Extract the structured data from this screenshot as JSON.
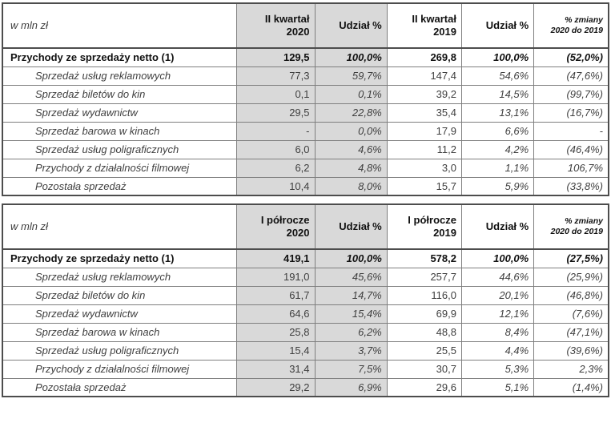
{
  "colors": {
    "shaded_column_bg": "#d9d9d9",
    "outer_border": "#4d4d4d",
    "inner_border": "#7f7f7f",
    "text_strong": "#111111",
    "text_regular": "#3f3f3f",
    "page_bg": "#ffffff"
  },
  "tables": [
    {
      "id": "quarterly",
      "unit_label": "w mln zł",
      "columns": [
        "II kwartał\n2020",
        "Udział %",
        "II kwartał\n2019",
        "Udział %",
        "% zmiany\n2020 do 2019"
      ],
      "rows": [
        {
          "label": "Przychody ze sprzedaży netto (1)",
          "total": true,
          "values": [
            "129,5",
            "100,0%",
            "269,8",
            "100,0%",
            "(52,0%)"
          ]
        },
        {
          "label": "Sprzedaż usług reklamowych",
          "total": false,
          "values": [
            "77,3",
            "59,7%",
            "147,4",
            "54,6%",
            "(47,6%)"
          ]
        },
        {
          "label": "Sprzedaż biletów do kin",
          "total": false,
          "values": [
            "0,1",
            "0,1%",
            "39,2",
            "14,5%",
            "(99,7%)"
          ]
        },
        {
          "label": "Sprzedaż wydawnictw",
          "total": false,
          "values": [
            "29,5",
            "22,8%",
            "35,4",
            "13,1%",
            "(16,7%)"
          ]
        },
        {
          "label": "Sprzedaż barowa w kinach",
          "total": false,
          "values": [
            "-",
            "0,0%",
            "17,9",
            "6,6%",
            "-"
          ]
        },
        {
          "label": "Sprzedaż usług poligraficznych",
          "total": false,
          "values": [
            "6,0",
            "4,6%",
            "11,2",
            "4,2%",
            "(46,4%)"
          ]
        },
        {
          "label": "Przychody z działalności filmowej",
          "total": false,
          "values": [
            "6,2",
            "4,8%",
            "3,0",
            "1,1%",
            "106,7%"
          ]
        },
        {
          "label": "Pozostała sprzedaż",
          "total": false,
          "values": [
            "10,4",
            "8,0%",
            "15,7",
            "5,9%",
            "(33,8%)"
          ]
        }
      ]
    },
    {
      "id": "half-year",
      "unit_label": "w mln zł",
      "columns": [
        "I półrocze\n2020",
        "Udział %",
        "I półrocze\n2019",
        "Udział %",
        "% zmiany\n2020 do 2019"
      ],
      "rows": [
        {
          "label": "Przychody ze sprzedaży netto (1)",
          "total": true,
          "values": [
            "419,1",
            "100,0%",
            "578,2",
            "100,0%",
            "(27,5%)"
          ]
        },
        {
          "label": "Sprzedaż usług reklamowych",
          "total": false,
          "values": [
            "191,0",
            "45,6%",
            "257,7",
            "44,6%",
            "(25,9%)"
          ]
        },
        {
          "label": "Sprzedaż biletów do kin",
          "total": false,
          "values": [
            "61,7",
            "14,7%",
            "116,0",
            "20,1%",
            "(46,8%)"
          ]
        },
        {
          "label": "Sprzedaż wydawnictw",
          "total": false,
          "values": [
            "64,6",
            "15,4%",
            "69,9",
            "12,1%",
            "(7,6%)"
          ]
        },
        {
          "label": "Sprzedaż barowa w kinach",
          "total": false,
          "values": [
            "25,8",
            "6,2%",
            "48,8",
            "8,4%",
            "(47,1%)"
          ]
        },
        {
          "label": "Sprzedaż usług poligraficznych",
          "total": false,
          "values": [
            "15,4",
            "3,7%",
            "25,5",
            "4,4%",
            "(39,6%)"
          ]
        },
        {
          "label": "Przychody z działalności filmowej",
          "total": false,
          "values": [
            "31,4",
            "7,5%",
            "30,7",
            "5,3%",
            "2,3%"
          ]
        },
        {
          "label": "Pozostała sprzedaż",
          "total": false,
          "values": [
            "29,2",
            "6,9%",
            "29,6",
            "5,1%",
            "(1,4%)"
          ]
        }
      ]
    }
  ]
}
